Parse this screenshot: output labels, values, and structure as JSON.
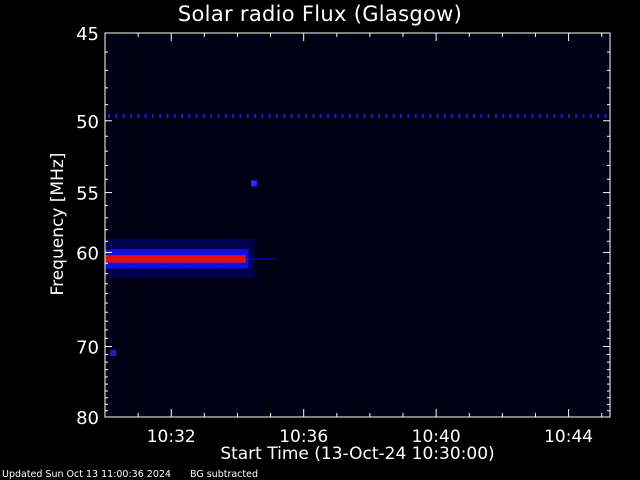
{
  "chart_data": {
    "type": "heatmap",
    "title": "Solar radio Flux (Glasgow)",
    "xlabel": "Start Time (13-Oct-24 10:30:00)",
    "ylabel": "Frequency [MHz]",
    "x_unit": "time (HH:MM)",
    "xlim": [
      "10:30:00",
      "10:45:15"
    ],
    "ylim": [
      45,
      80
    ],
    "y_axis_inverted": true,
    "y_scale": "nonlinear (reciprocal-like)",
    "x_ticks": [
      "10:32",
      "10:36",
      "10:40",
      "10:44"
    ],
    "y_ticks": [
      45,
      50,
      55,
      60,
      70,
      80
    ],
    "colormap": [
      "#000000",
      "#0000ff",
      "#ff0000"
    ],
    "features": [
      {
        "kind": "band",
        "x_start": "10:30:00",
        "x_end": "10:34:20",
        "freq_center": 60.6,
        "freq_halfwidth": 0.9,
        "intensity": "high"
      },
      {
        "kind": "line",
        "freq": 49.7,
        "x_start": "10:30:00",
        "x_end": "10:45:15",
        "intensity": "low"
      },
      {
        "kind": "spot",
        "x": "10:34:30",
        "freq": 54.3,
        "intensity": "medium"
      },
      {
        "kind": "spot",
        "x": "10:30:15",
        "freq": 70.8,
        "intensity": "low"
      }
    ]
  },
  "footer": {
    "updated": "Updated Sun Oct 13 11:00:36 2024",
    "note": "BG subtracted"
  }
}
